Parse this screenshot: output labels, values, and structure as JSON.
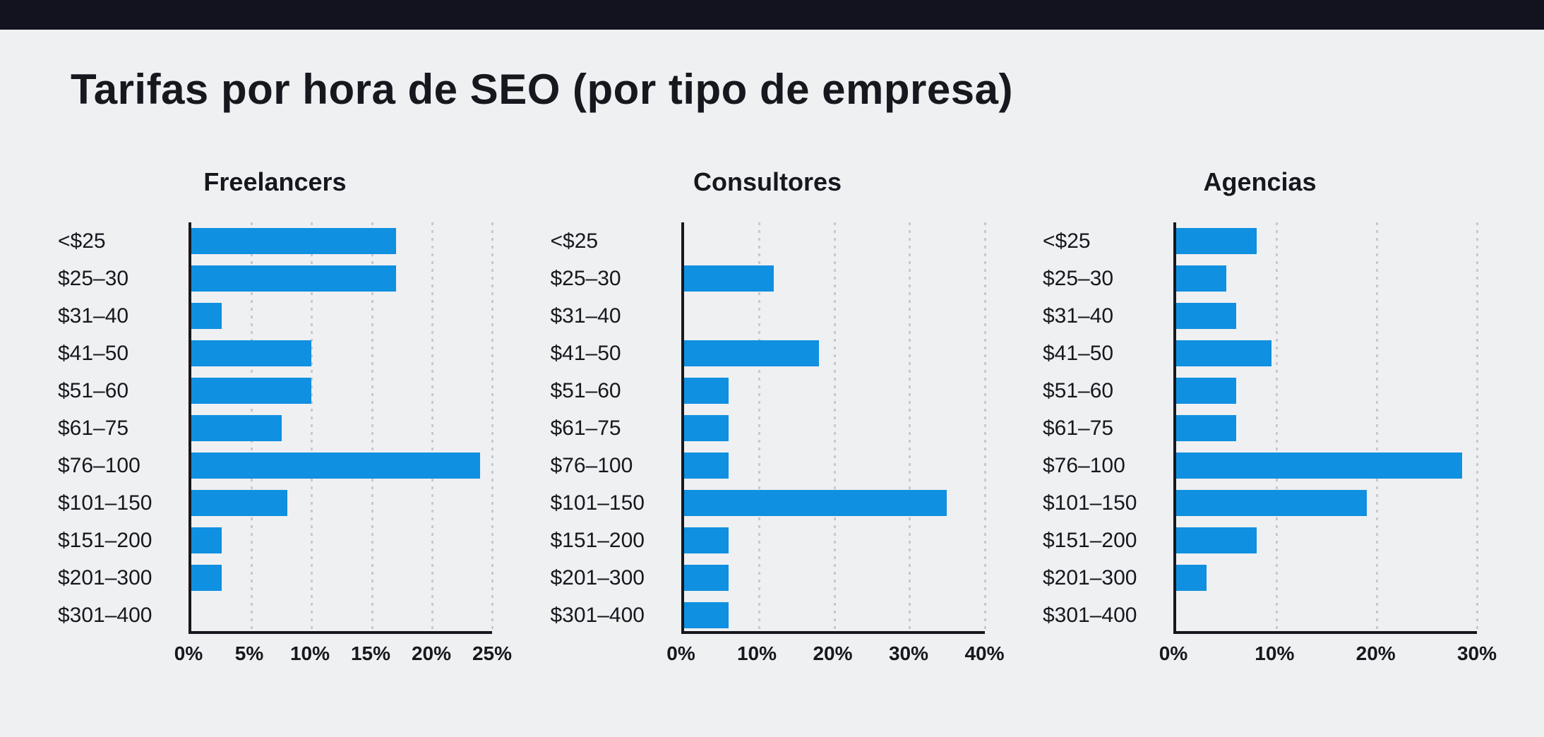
{
  "page": {
    "title": "Tarifas por hora de SEO (por tipo de empresa)",
    "background_color": "#eff0f2",
    "topbar_color": "#13131f",
    "text_color": "#17171e",
    "bar_color": "#0F90E0",
    "grid_color": "#c7c9cf"
  },
  "chart_data": [
    {
      "type": "bar",
      "orientation": "horizontal",
      "title": "Freelancers",
      "categories": [
        "<$25",
        "$25–30",
        "$31–40",
        "$41–50",
        "$51–60",
        "$61–75",
        "$76–100",
        "$101–150",
        "$151–200",
        "$201–300",
        "$301–400"
      ],
      "values": [
        17,
        17,
        2.5,
        10,
        10,
        7.5,
        24,
        8,
        2.5,
        2.5,
        0
      ],
      "xlim": [
        0,
        25
      ],
      "xticks": [
        "0%",
        "5%",
        "10%",
        "15%",
        "20%",
        "25%"
      ],
      "xlabel": "",
      "ylabel": "",
      "grid": "dotted-vertical",
      "legend": "none",
      "bar_color": "#0F90E0"
    },
    {
      "type": "bar",
      "orientation": "horizontal",
      "title": "Consultores",
      "categories": [
        "<$25",
        "$25–30",
        "$31–40",
        "$41–50",
        "$51–60",
        "$61–75",
        "$76–100",
        "$101–150",
        "$151–200",
        "$201–300",
        "$301–400"
      ],
      "values": [
        0,
        12,
        0,
        18,
        6,
        6,
        6,
        35,
        6,
        6,
        6
      ],
      "xlim": [
        0,
        40
      ],
      "xticks": [
        "0%",
        "10%",
        "20%",
        "30%",
        "40%"
      ],
      "xlabel": "",
      "ylabel": "",
      "grid": "dotted-vertical",
      "legend": "none",
      "bar_color": "#0F90E0"
    },
    {
      "type": "bar",
      "orientation": "horizontal",
      "title": "Agencias",
      "categories": [
        "<$25",
        "$25–30",
        "$31–40",
        "$41–50",
        "$51–60",
        "$61–75",
        "$76–100",
        "$101–150",
        "$151–200",
        "$201–300",
        "$301–400"
      ],
      "values": [
        8,
        5,
        6,
        9.5,
        6,
        6,
        28.5,
        19,
        8,
        3,
        0
      ],
      "xlim": [
        0,
        30
      ],
      "xticks": [
        "0%",
        "10%",
        "20%",
        "30%"
      ],
      "xlabel": "",
      "ylabel": "",
      "grid": "dotted-vertical",
      "legend": "none",
      "bar_color": "#0F90E0"
    }
  ]
}
